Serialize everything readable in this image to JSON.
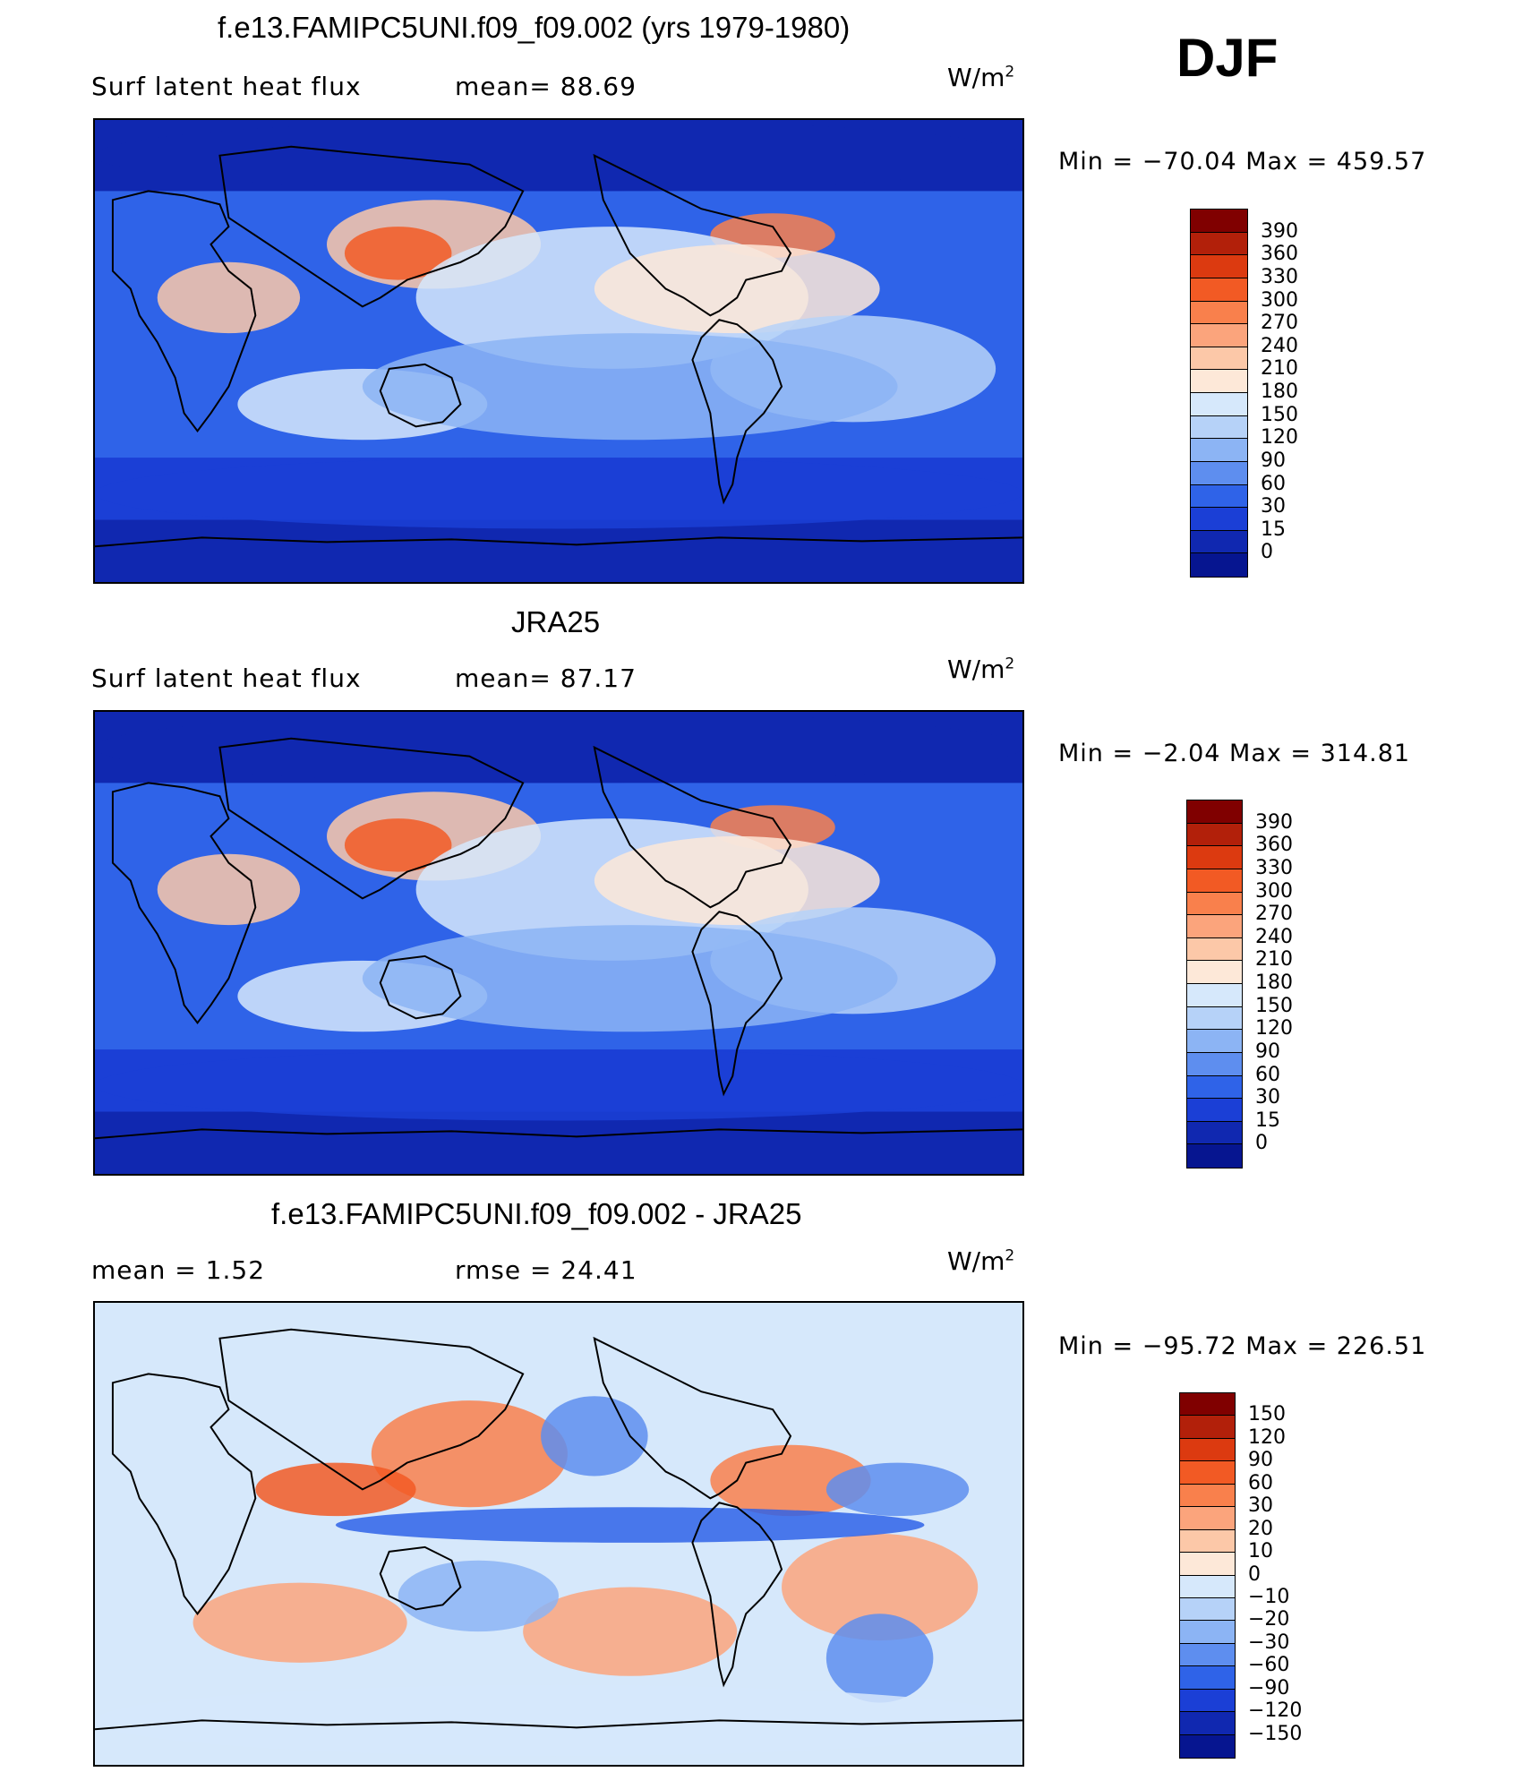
{
  "season": "DJF",
  "panels": [
    {
      "title": "f.e13.FAMIPC5UNI.f09_f09.002 (yrs 1979-1980)",
      "left_label": "Surf  latent  heat  flux",
      "mid_label": "mean=   88.69",
      "units": "W/m",
      "units_sup": "2",
      "minmax": "Min  =  −70.04  Max  =  459.57",
      "palette": "abs",
      "colorbar_levels": [
        "390",
        "360",
        "330",
        "300",
        "270",
        "240",
        "210",
        "180",
        "150",
        "120",
        "90",
        "60",
        "30",
        "15",
        "0"
      ]
    },
    {
      "title": "JRA25",
      "left_label": "Surf  latent  heat  flux",
      "mid_label": "mean=   87.17",
      "units": "W/m",
      "units_sup": "2",
      "minmax": "Min  =    −2.04  Max  =  314.81",
      "palette": "abs",
      "colorbar_levels": [
        "390",
        "360",
        "330",
        "300",
        "270",
        "240",
        "210",
        "180",
        "150",
        "120",
        "90",
        "60",
        "30",
        "15",
        "0"
      ]
    },
    {
      "title": "f.e13.FAMIPC5UNI.f09_f09.002 - JRA25",
      "left_label": "mean  =      1.52",
      "mid_label": "rmse  =    24.41",
      "units": "W/m",
      "units_sup": "2",
      "minmax": "Min  =  −95.72  Max  =  226.51",
      "palette": "diff",
      "colorbar_levels": [
        "150",
        "120",
        "90",
        "60",
        "30",
        "20",
        "10",
        "0",
        "−10",
        "−20",
        "−30",
        "−60",
        "−90",
        "−120",
        "−150"
      ]
    }
  ],
  "palettes": {
    "abs": [
      "#800000",
      "#b2200a",
      "#dc3a10",
      "#f25a24",
      "#f9804c",
      "#fba47c",
      "#fcc8a8",
      "#fde8d8",
      "#d6e8fb",
      "#b6d2f8",
      "#8cb4f4",
      "#5e8eef",
      "#2f63e8",
      "#1b3fd6",
      "#1028b0",
      "#061590"
    ],
    "diff": [
      "#800000",
      "#b2200a",
      "#dc3a10",
      "#f25a24",
      "#f9804c",
      "#fba47c",
      "#fcc8a8",
      "#fde8d8",
      "#d6e8fb",
      "#b6d2f8",
      "#8cb4f4",
      "#5e8eef",
      "#2f63e8",
      "#1b3fd6",
      "#1028b0",
      "#061590"
    ]
  }
}
